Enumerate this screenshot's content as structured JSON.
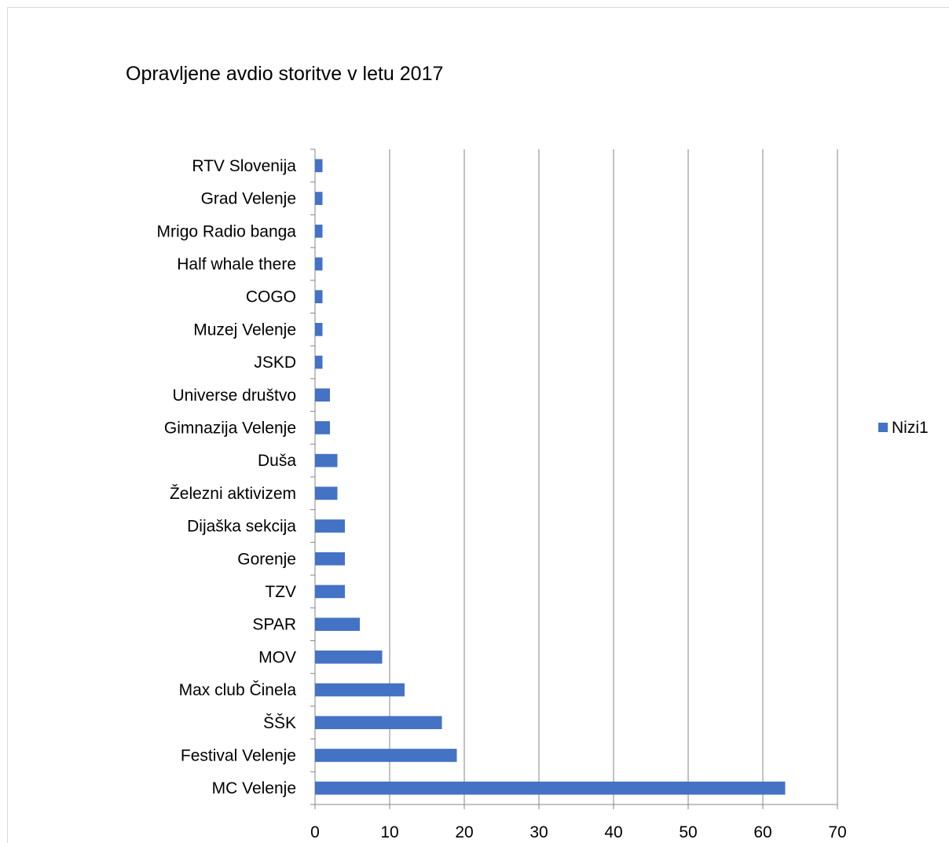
{
  "chart_data": {
    "type": "bar",
    "orientation": "horizontal",
    "title": "Opravljene avdio storitve v letu 2017",
    "categories": [
      "MC Velenje",
      "Festival Velenje",
      "ŠŠK",
      "Max club Činela",
      "MOV",
      "SPAR",
      "TZV",
      "Gorenje",
      "Dijaška sekcija",
      "Železni aktivizem",
      "Duša",
      "Gimnazija Velenje",
      "Universe društvo",
      "JSKD",
      "Muzej Velenje ",
      "COGO ",
      "Half whale there",
      "Mrigo Radio banga",
      "Grad Velenje",
      "RTV Slovenija"
    ],
    "series": [
      {
        "name": "Nizi1",
        "color": "#4472c4",
        "values": [
          63,
          19,
          17,
          12,
          9,
          6,
          4,
          4,
          4,
          3,
          3,
          2,
          2,
          1,
          1,
          1,
          1,
          1,
          1,
          1
        ]
      }
    ],
    "xlim": [
      0,
      70
    ],
    "xticks": [
      0,
      10,
      20,
      30,
      40,
      50,
      60,
      70
    ],
    "grid": true,
    "legend_position": "right"
  }
}
